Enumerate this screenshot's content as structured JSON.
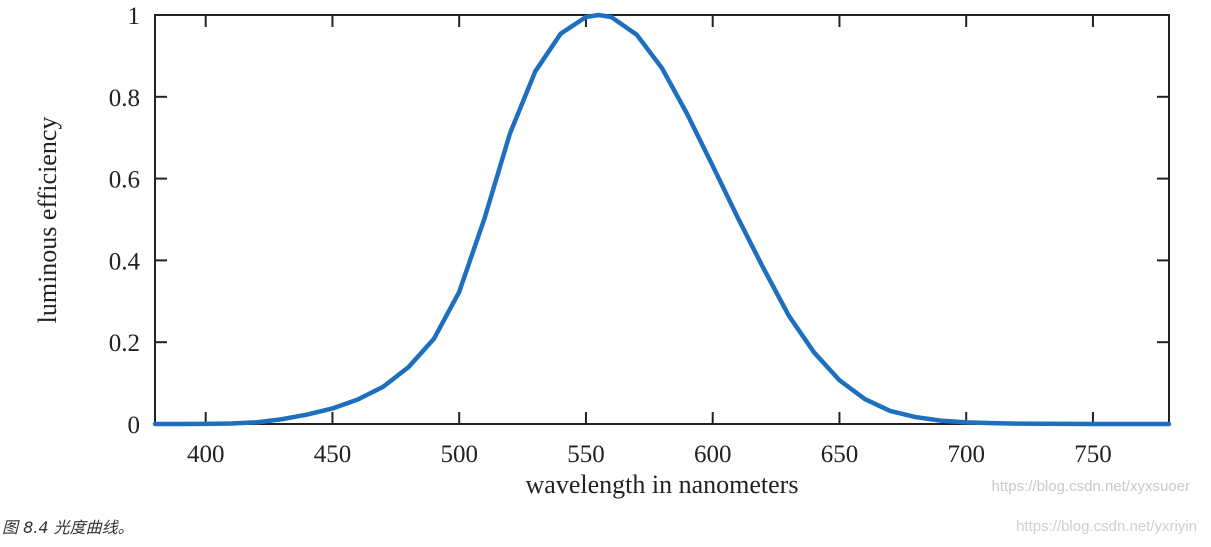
{
  "chart_data": {
    "type": "line",
    "title": "",
    "xlabel": "wavelength in nanometers",
    "ylabel": "luminous efficiency",
    "xlim": [
      380,
      780
    ],
    "ylim": [
      0,
      1
    ],
    "x_ticks": [
      400,
      450,
      500,
      550,
      600,
      650,
      700,
      750
    ],
    "x_tick_labels": [
      "400",
      "450",
      "500",
      "550",
      "600",
      "650",
      "700",
      "750"
    ],
    "y_ticks": [
      0,
      0.2,
      0.4,
      0.6,
      0.8,
      1
    ],
    "y_tick_labels": [
      "0",
      "0.2",
      "0.4",
      "0.6",
      "0.8",
      "1"
    ],
    "grid": false,
    "line_color": "#1f6fbf",
    "series": [
      {
        "x": [
          380,
          390,
          400,
          410,
          420,
          430,
          440,
          450,
          460,
          470,
          480,
          490,
          500,
          510,
          520,
          530,
          540,
          550,
          555,
          560,
          570,
          580,
          590,
          600,
          610,
          620,
          630,
          640,
          650,
          660,
          670,
          680,
          690,
          700,
          710,
          720,
          730,
          740,
          750,
          760,
          770,
          780
        ],
        "y": [
          0.0,
          0.0001,
          0.0004,
          0.0012,
          0.004,
          0.0116,
          0.023,
          0.038,
          0.06,
          0.091,
          0.139,
          0.208,
          0.323,
          0.503,
          0.71,
          0.862,
          0.954,
          0.995,
          1.0,
          0.995,
          0.952,
          0.87,
          0.757,
          0.631,
          0.503,
          0.381,
          0.265,
          0.175,
          0.107,
          0.061,
          0.032,
          0.017,
          0.0082,
          0.0041,
          0.0021,
          0.001,
          0.0005,
          0.0002,
          0.0001,
          0.0,
          0.0,
          0.0
        ]
      }
    ]
  },
  "watermark_inner": "https://blog.csdn.net/xyxsuoer",
  "caption": "图 8.4  光度曲线。",
  "watermark_bottom": "https://blog.csdn.net/yxriyin"
}
